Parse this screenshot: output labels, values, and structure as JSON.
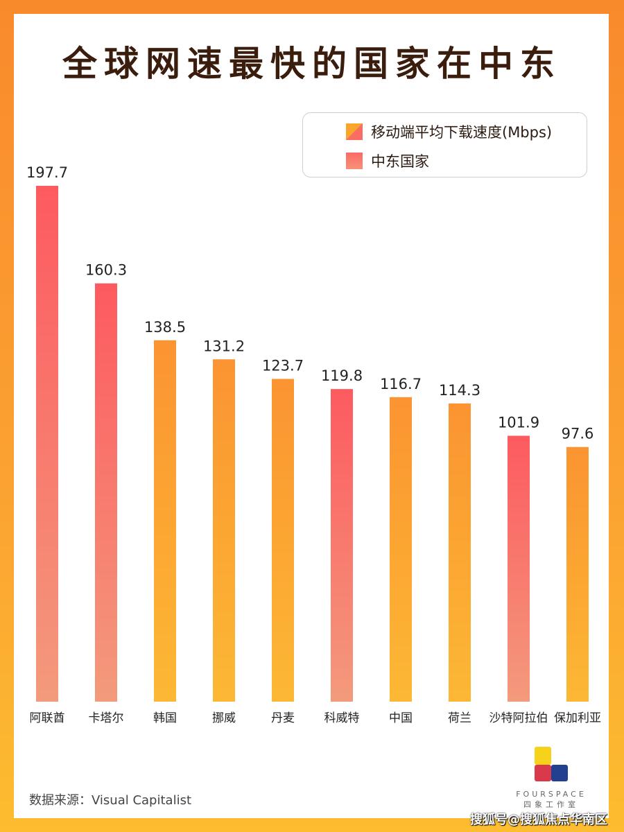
{
  "chart_data": {
    "type": "bar",
    "title": "全球网速最快的国家在中东",
    "categories": [
      "阿联酋",
      "卡塔尔",
      "韩国",
      "挪威",
      "丹麦",
      "科威特",
      "中国",
      "荷兰",
      "沙特阿拉伯",
      "保加利亚"
    ],
    "values": [
      197.7,
      160.3,
      138.5,
      131.2,
      123.7,
      119.8,
      116.7,
      114.3,
      101.9,
      97.6
    ],
    "value_labels": [
      "197.7",
      "160.3",
      "138.5",
      "131.2",
      "123.7",
      "119.8",
      "116.7",
      "114.3",
      "101.9",
      "97.6"
    ],
    "middle_east": [
      true,
      true,
      false,
      false,
      false,
      true,
      false,
      false,
      true,
      false
    ],
    "legend": [
      "移动端平均下载速度(Mbps)",
      "中东国家"
    ],
    "legend_placement": "top-right",
    "ylim": [
      0,
      197.7
    ],
    "grid": false,
    "colors": {
      "orange_top": "#fb9431",
      "orange_bottom": "#fcb834",
      "red_top": "#fd5a60",
      "red_bottom": "#f39a7c"
    }
  },
  "source": "数据来源：Visual Capitalist",
  "logo": {
    "en": "FOURSPACE",
    "cn": "四象工作室"
  },
  "watermark": "搜狐号@搜狐焦点华南区"
}
